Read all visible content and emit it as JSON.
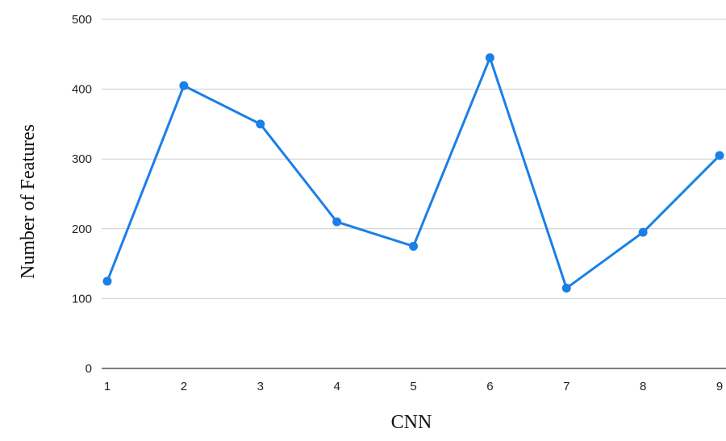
{
  "chart_data": {
    "type": "line",
    "title": "",
    "xlabel": "CNN",
    "ylabel": "Number of Features",
    "x": [
      1,
      2,
      3,
      4,
      5,
      6,
      7,
      8,
      9
    ],
    "series": [
      {
        "values": [
          125,
          405,
          350,
          210,
          175,
          445,
          115,
          195,
          305
        ],
        "color": "#1a7fe6"
      }
    ],
    "ylim": [
      0,
      500
    ],
    "yticks": [
      0,
      100,
      200,
      300,
      400,
      500
    ],
    "xticks": [
      1,
      2,
      3,
      4,
      5,
      6,
      7,
      8,
      9
    ],
    "grid": "horizontal",
    "legend": "none",
    "markers": "circle"
  }
}
